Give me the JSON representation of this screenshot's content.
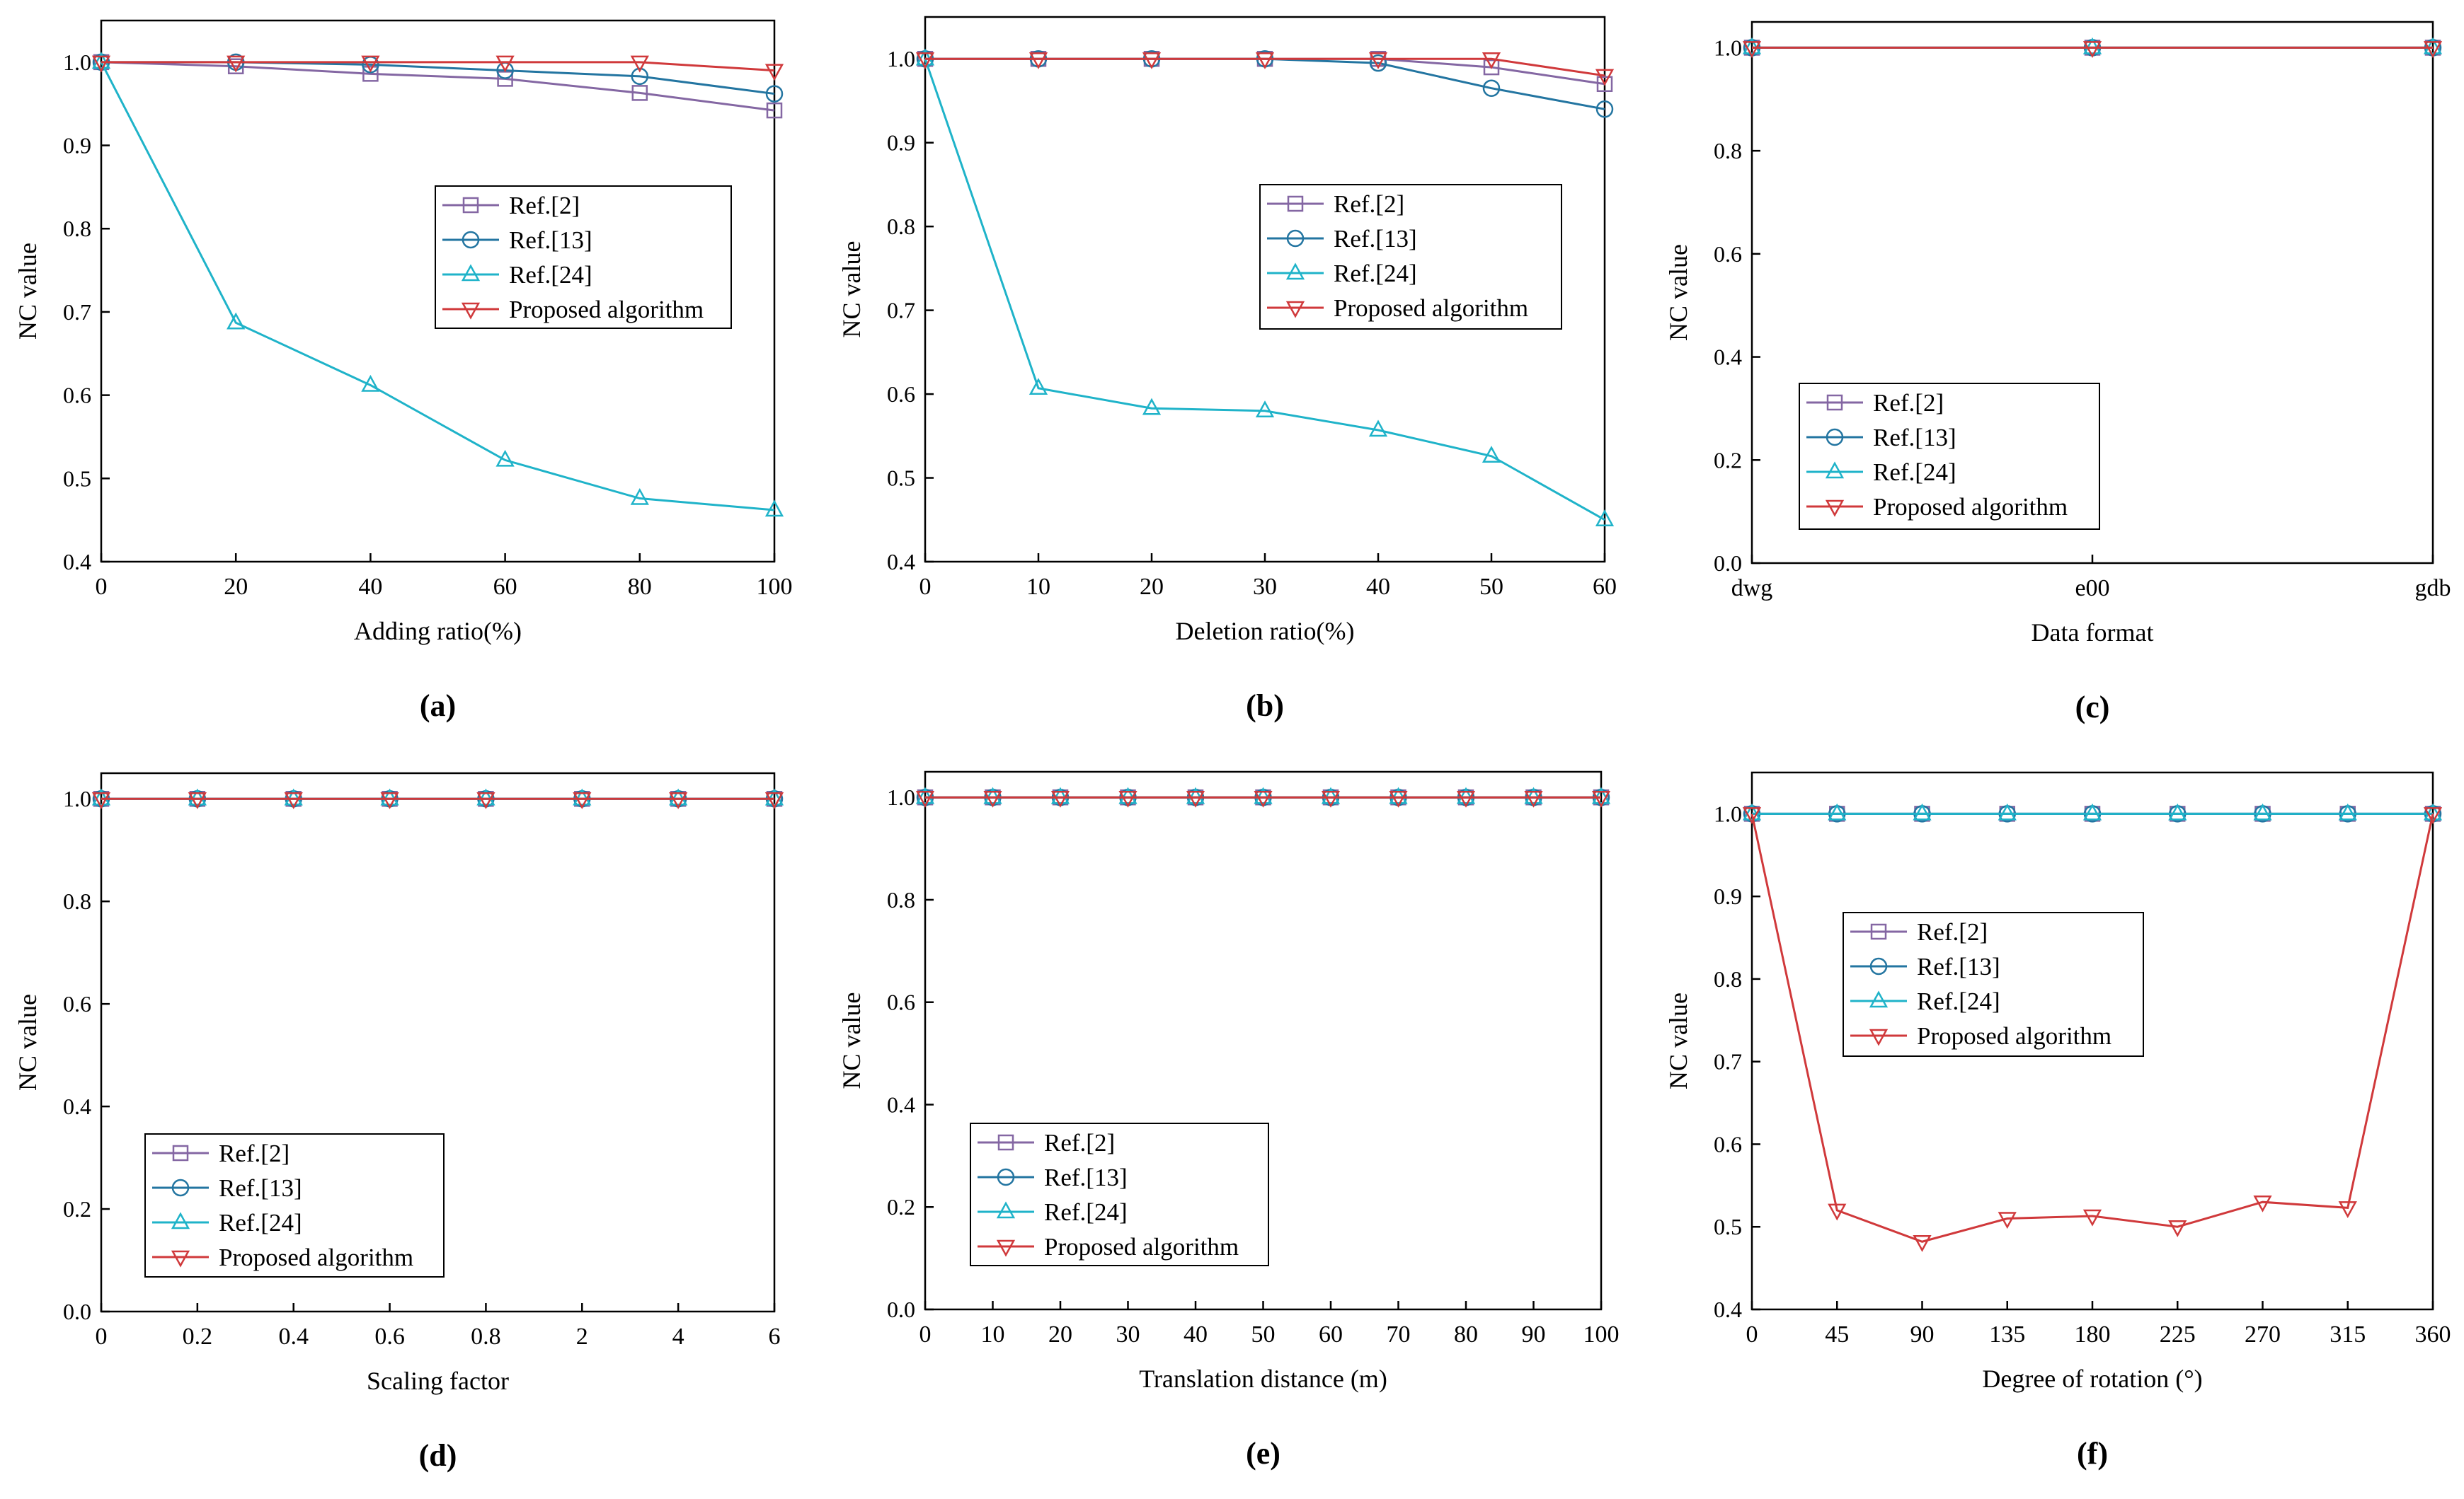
{
  "series_styles": [
    {
      "name": "Ref.[2]",
      "color": "#8467a3",
      "marker": "square"
    },
    {
      "name": "Ref.[13]",
      "color": "#2375a1",
      "marker": "circle"
    },
    {
      "name": "Ref.[24]",
      "color": "#1fb3c9",
      "marker": "triangle-up"
    },
    {
      "name": "Proposed algorithm",
      "color": "#d0393b",
      "marker": "triangle-down"
    }
  ],
  "chart_data": [
    {
      "panel": "(a)",
      "type": "line",
      "xlabel": "Adding ratio(%)",
      "ylabel": "NC value",
      "x_ticks": [
        "0",
        "20",
        "40",
        "60",
        "80",
        "100"
      ],
      "ylim": [
        0.4,
        1.05
      ],
      "y_ticks": [
        0.4,
        0.5,
        0.6,
        0.7,
        0.8,
        0.9,
        1.0
      ],
      "legend": "center-right",
      "series": [
        {
          "name": "Ref.[2]",
          "values": [
            1.0,
            0.995,
            0.986,
            0.98,
            0.963,
            0.942
          ]
        },
        {
          "name": "Ref.[13]",
          "values": [
            1.0,
            1.0,
            0.997,
            0.99,
            0.983,
            0.962
          ]
        },
        {
          "name": "Ref.[24]",
          "values": [
            1.0,
            0.687,
            0.612,
            0.522,
            0.476,
            0.462
          ]
        },
        {
          "name": "Proposed algorithm",
          "values": [
            1.0,
            1.0,
            1.0,
            1.0,
            1.0,
            0.99
          ]
        }
      ]
    },
    {
      "panel": "(b)",
      "type": "line",
      "xlabel": "Deletion ratio(%)",
      "ylabel": "NC value",
      "x_ticks": [
        "0",
        "10",
        "20",
        "30",
        "40",
        "50",
        "60"
      ],
      "ylim": [
        0.4,
        1.05
      ],
      "y_ticks": [
        0.4,
        0.5,
        0.6,
        0.7,
        0.8,
        0.9,
        1.0
      ],
      "legend": "top-right",
      "series": [
        {
          "name": "Ref.[2]",
          "values": [
            1.0,
            1.0,
            1.0,
            1.0,
            1.0,
            0.99,
            0.97
          ]
        },
        {
          "name": "Ref.[13]",
          "values": [
            1.0,
            1.0,
            1.0,
            1.0,
            0.995,
            0.965,
            0.94
          ]
        },
        {
          "name": "Ref.[24]",
          "values": [
            1.0,
            0.607,
            0.583,
            0.58,
            0.557,
            0.526,
            0.45
          ]
        },
        {
          "name": "Proposed algorithm",
          "values": [
            1.0,
            1.0,
            1.0,
            1.0,
            1.0,
            1.0,
            0.98
          ]
        }
      ]
    },
    {
      "panel": "(c)",
      "type": "line",
      "xlabel": "Data format",
      "ylabel": "NC value",
      "x_ticks": [
        "dwg",
        "e00",
        "gdb"
      ],
      "ylim": [
        0.0,
        1.05
      ],
      "y_ticks": [
        0.0,
        0.2,
        0.4,
        0.6,
        0.8,
        1.0
      ],
      "legend": "bottom-left",
      "series": [
        {
          "name": "Ref.[2]",
          "values": [
            1.0,
            1.0,
            1.0
          ]
        },
        {
          "name": "Ref.[13]",
          "values": [
            1.0,
            1.0,
            1.0
          ]
        },
        {
          "name": "Ref.[24]",
          "values": [
            1.0,
            1.0,
            1.0
          ]
        },
        {
          "name": "Proposed algorithm",
          "values": [
            1.0,
            1.0,
            1.0
          ]
        }
      ]
    },
    {
      "panel": "(d)",
      "type": "line",
      "xlabel": "Scaling factor",
      "ylabel": "NC value",
      "x_ticks": [
        "0",
        "0.2",
        "0.4",
        "0.6",
        "0.8",
        "2",
        "4",
        "6"
      ],
      "ylim": [
        0.0,
        1.05
      ],
      "y_ticks": [
        0.0,
        0.2,
        0.4,
        0.6,
        0.8,
        1.0
      ],
      "legend": "bottom-left",
      "series": [
        {
          "name": "Ref.[2]",
          "values": [
            1,
            1,
            1,
            1,
            1,
            1,
            1,
            1
          ]
        },
        {
          "name": "Ref.[13]",
          "values": [
            1,
            1,
            1,
            1,
            1,
            1,
            1,
            1
          ]
        },
        {
          "name": "Ref.[24]",
          "values": [
            1,
            1,
            1,
            1,
            1,
            1,
            1,
            1
          ]
        },
        {
          "name": "Proposed algorithm",
          "values": [
            1,
            1,
            1,
            1,
            1,
            1,
            1,
            1
          ]
        }
      ]
    },
    {
      "panel": "(e)",
      "type": "line",
      "xlabel": "Translation distance (m)",
      "ylabel": "NC value",
      "x_ticks": [
        "0",
        "10",
        "20",
        "30",
        "40",
        "50",
        "60",
        "70",
        "80",
        "90",
        "100"
      ],
      "ylim": [
        0.0,
        1.05
      ],
      "y_ticks": [
        0.0,
        0.2,
        0.4,
        0.6,
        0.8,
        1.0
      ],
      "legend": "bottom-left",
      "series": [
        {
          "name": "Ref.[2]",
          "values": [
            1,
            1,
            1,
            1,
            1,
            1,
            1,
            1,
            1,
            1,
            1
          ]
        },
        {
          "name": "Ref.[13]",
          "values": [
            1,
            1,
            1,
            1,
            1,
            1,
            1,
            1,
            1,
            1,
            1
          ]
        },
        {
          "name": "Ref.[24]",
          "values": [
            1,
            1,
            1,
            1,
            1,
            1,
            1,
            1,
            1,
            1,
            1
          ]
        },
        {
          "name": "Proposed algorithm",
          "values": [
            1,
            1,
            1,
            1,
            1,
            1,
            1,
            1,
            1,
            1,
            1
          ]
        }
      ]
    },
    {
      "panel": "(f)",
      "type": "line",
      "xlabel": "Degree of rotation (°)",
      "ylabel": "NC value",
      "x_ticks": [
        "0",
        "45",
        "90",
        "135",
        "180",
        "225",
        "270",
        "315",
        "360"
      ],
      "ylim": [
        0.4,
        1.05
      ],
      "y_ticks": [
        0.4,
        0.5,
        0.6,
        0.7,
        0.8,
        0.9,
        1.0
      ],
      "legend": "center-left",
      "series": [
        {
          "name": "Ref.[2]",
          "values": [
            1,
            1,
            1,
            1,
            1,
            1,
            1,
            1,
            1
          ]
        },
        {
          "name": "Ref.[13]",
          "values": [
            1,
            1,
            1,
            1,
            1,
            1,
            1,
            1,
            1
          ]
        },
        {
          "name": "Ref.[24]",
          "values": [
            1,
            1,
            1,
            1,
            1,
            1,
            1,
            1,
            1
          ]
        },
        {
          "name": "Proposed algorithm",
          "values": [
            1.0,
            0.52,
            0.482,
            0.51,
            0.513,
            0.5,
            0.53,
            0.523,
            1.0
          ]
        }
      ]
    }
  ]
}
